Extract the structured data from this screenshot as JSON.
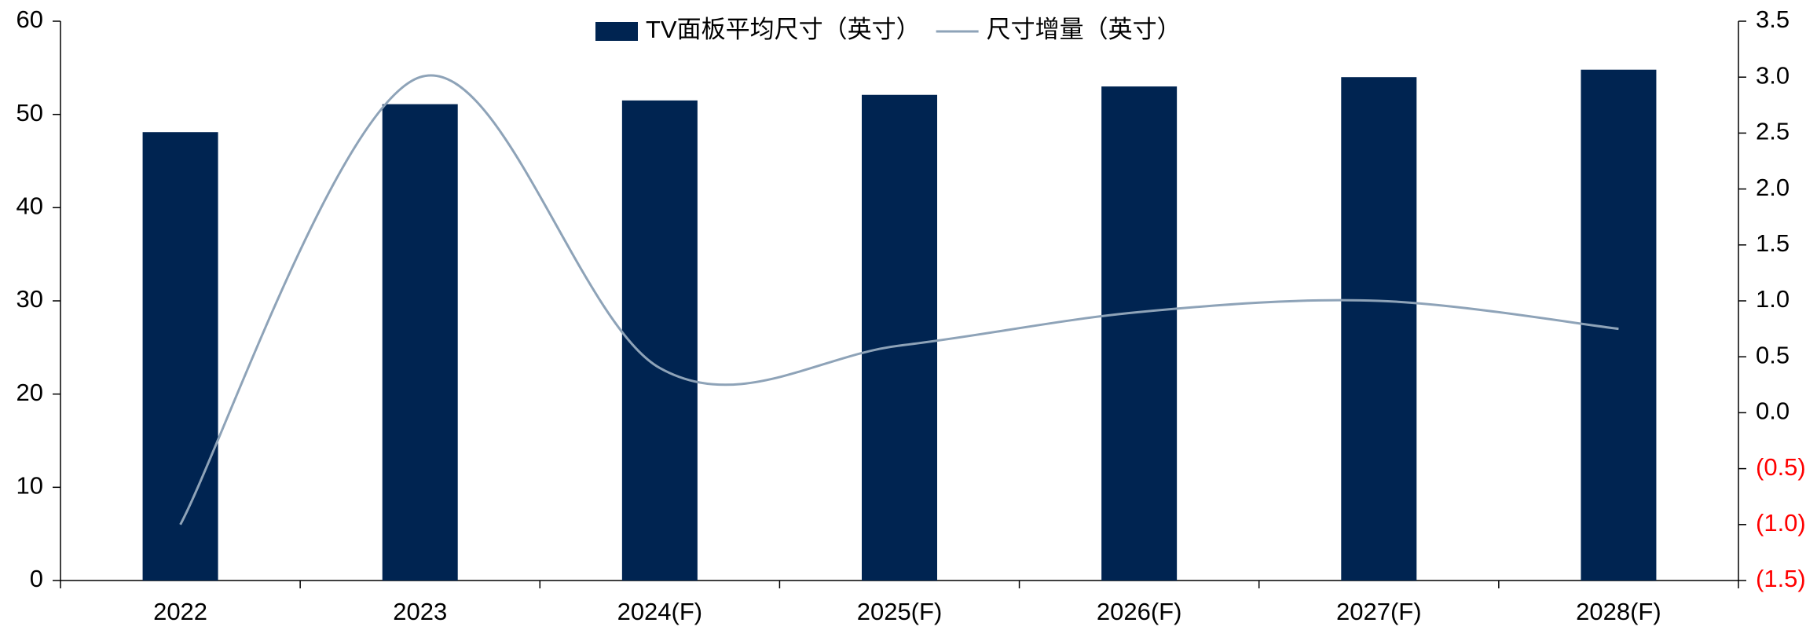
{
  "chart_data": {
    "type": "bar_line",
    "categories": [
      "2022",
      "2023",
      "2024(F)",
      "2025(F)",
      "2026(F)",
      "2027(F)",
      "2028(F)"
    ],
    "series": [
      {
        "name": "TV面板平均尺寸（英寸）",
        "color": "#002451",
        "type": "bar",
        "values": [
          48.1,
          51.1,
          51.5,
          52.1,
          53.0,
          54.0,
          54.8
        ]
      },
      {
        "name": "尺寸增量（英寸）",
        "color": "#8ea3b8",
        "type": "line",
        "axis": "y2",
        "smooth": true,
        "values": [
          -1.0,
          3.0,
          0.4,
          0.6,
          0.9,
          1.0,
          0.75
        ]
      }
    ],
    "ylim": [
      0,
      60
    ],
    "yticks": [
      0,
      10,
      20,
      30,
      40,
      50,
      60
    ],
    "y2lim": [
      -1.5,
      3.5
    ],
    "y2ticks": [
      {
        "value": -1.5,
        "label": "(1.5)"
      },
      {
        "value": -1.0,
        "label": "(1.0)"
      },
      {
        "value": -0.5,
        "label": "(0.5)"
      },
      {
        "value": 0,
        "label": "0.0"
      },
      {
        "value": 0.5,
        "label": "0.5"
      },
      {
        "value": 1.0,
        "label": "1.0"
      },
      {
        "value": 1.5,
        "label": "1.5"
      },
      {
        "value": 2.0,
        "label": "2.0"
      },
      {
        "value": 2.5,
        "label": "2.5"
      },
      {
        "value": 3.0,
        "label": "3.0"
      },
      {
        "value": 3.5,
        "label": "3.5"
      }
    ],
    "negative_tick_color": "#ff0000",
    "legend": "top",
    "grid": false
  }
}
